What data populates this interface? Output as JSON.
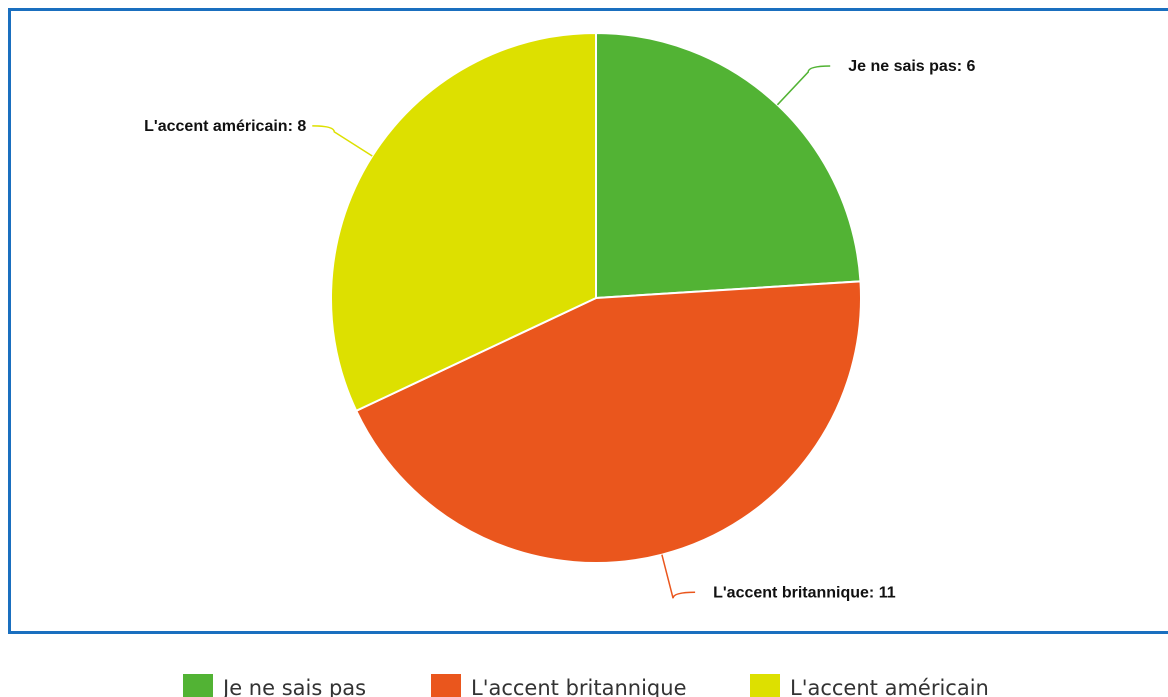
{
  "chart_data": {
    "type": "pie",
    "categories": [
      "Je ne sais pas",
      "L'accent britannique",
      "L'accent américain"
    ],
    "values": [
      6,
      11,
      8
    ],
    "value_labels": [
      "Je ne sais pas: 6",
      "L'accent britannique: 11",
      "L'accent américain: 8"
    ],
    "colors": [
      "#52b334",
      "#ea561d",
      "#dde000"
    ],
    "legend": "bottom"
  }
}
